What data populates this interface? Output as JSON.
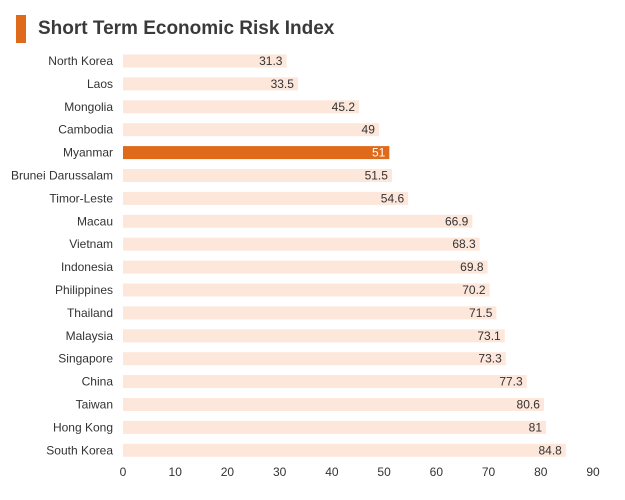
{
  "header": {
    "title": "Short Term Economic Risk Index"
  },
  "colors": {
    "accent": "#e06a1b",
    "bar": "#fde6da",
    "highlight": "#e06a1b",
    "text": "#333333",
    "highlight_text": "#ffffff"
  },
  "chart_data": {
    "type": "bar",
    "orientation": "horizontal",
    "title": "Short Term Economic Risk Index",
    "categories": [
      "North Korea",
      "Laos",
      "Mongolia",
      "Cambodia",
      "Myanmar",
      "Brunei Darussalam",
      "Timor-Leste",
      "Macau",
      "Vietnam",
      "Indonesia",
      "Philippines",
      "Thailand",
      "Malaysia",
      "Singapore",
      "China",
      "Taiwan",
      "Hong Kong",
      "South Korea"
    ],
    "values": [
      31.3,
      33.5,
      45.2,
      49,
      51,
      51.5,
      54.6,
      66.9,
      68.3,
      69.8,
      70.2,
      71.5,
      73.1,
      73.3,
      77.3,
      80.6,
      81,
      84.8
    ],
    "value_labels": [
      "31.3",
      "33.5",
      "45.2",
      "49",
      "51",
      "51.5",
      "54.6",
      "66.9",
      "68.3",
      "69.8",
      "70.2",
      "71.5",
      "73.1",
      "73.3",
      "77.3",
      "80.6",
      "81",
      "84.8"
    ],
    "highlighted_category": "Myanmar",
    "xlim": [
      0,
      90
    ],
    "xticks": [
      0,
      10,
      20,
      30,
      40,
      50,
      60,
      70,
      80,
      90
    ],
    "xtick_labels": [
      "0",
      "10",
      "20",
      "30",
      "40",
      "50",
      "60",
      "70",
      "80",
      "90"
    ],
    "xlabel": "",
    "ylabel": "",
    "grid": false,
    "legend": "none"
  }
}
